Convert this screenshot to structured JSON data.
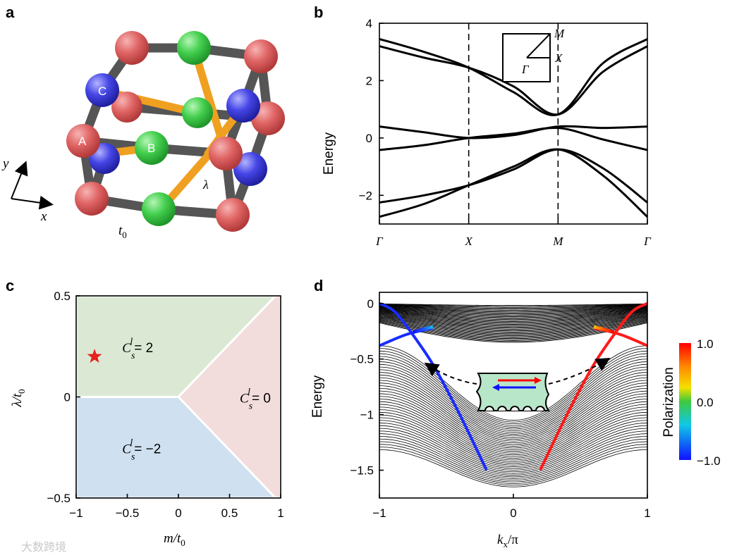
{
  "panels": {
    "a": "a",
    "b": "b",
    "c": "c",
    "d": "d"
  },
  "panel_a": {
    "site_labels": [
      "A",
      "B",
      "C"
    ],
    "hopping_t0": "t",
    "hopping_t0_sub": "0",
    "hopping_lambda": "λ",
    "axis_x": "x",
    "axis_y": "y",
    "colors": {
      "A": "#e05a5a",
      "B": "#3fcf52",
      "C": "#3a3ae0",
      "bond": "#555555",
      "lambda_bond": "#f0a020"
    }
  },
  "watermark": "大数跨境",
  "chart_data": [
    {
      "panel": "b",
      "type": "line",
      "xlabel": "",
      "ylabel": "Energy",
      "ylim": [
        -3,
        4
      ],
      "yticks": [
        -2,
        0,
        2,
        4
      ],
      "x_ticks": [
        "Γ",
        "X",
        "M",
        "Γ"
      ],
      "x_tick_positions": [
        0,
        1,
        2,
        3
      ],
      "vlines_at": [
        1,
        2
      ],
      "inset_labels": {
        "M": "M",
        "X": "X",
        "G": "Γ"
      },
      "series": [
        {
          "x": [
            0,
            0.5,
            1,
            1.5,
            2,
            2.5,
            3
          ],
          "values": [
            -2.75,
            -2.3,
            -1.65,
            -1.0,
            -0.4,
            -1.3,
            -2.75
          ]
        },
        {
          "x": [
            0,
            0.5,
            1,
            1.5,
            2,
            2.5,
            3
          ],
          "values": [
            -2.25,
            -2.0,
            -1.65,
            -1.1,
            -0.4,
            -1.05,
            -2.25
          ]
        },
        {
          "x": [
            0,
            0.5,
            1,
            1.5,
            2,
            2.5,
            3
          ],
          "values": [
            -0.42,
            -0.25,
            0.0,
            0.15,
            0.35,
            -0.05,
            -0.42
          ]
        },
        {
          "x": [
            0,
            0.5,
            1,
            1.5,
            2,
            2.5,
            3
          ],
          "values": [
            0.4,
            0.2,
            0.0,
            0.1,
            0.4,
            0.35,
            0.4
          ]
        },
        {
          "x": [
            0,
            0.5,
            1,
            1.5,
            2,
            2.5,
            3
          ],
          "values": [
            3.2,
            2.8,
            2.45,
            1.8,
            0.82,
            2.3,
            3.2
          ]
        },
        {
          "x": [
            0,
            0.5,
            1,
            1.5,
            2,
            2.5,
            3
          ],
          "values": [
            3.45,
            3.0,
            2.45,
            1.6,
            0.82,
            2.6,
            3.45
          ]
        }
      ]
    },
    {
      "panel": "c",
      "type": "area",
      "xlabel": "m/t",
      "xlabel_sub": "0",
      "ylabel": "λ/t",
      "ylabel_sub": "0",
      "xlim": [
        -1,
        1
      ],
      "ylim": [
        -0.5,
        0.5
      ],
      "xticks": [
        -1,
        -0.5,
        0,
        0.5,
        1
      ],
      "xtick_labels": [
        "−1",
        "−0.5",
        "0",
        "0.5",
        "1"
      ],
      "yticks": [
        -0.5,
        0,
        0.5
      ],
      "ytick_labels": [
        "−0.5",
        "0",
        "0.5"
      ],
      "regions": [
        {
          "value_label": "= 2",
          "color": "#dbe9d4",
          "polygon": [
            [
              -1,
              0
            ],
            [
              0,
              0
            ],
            [
              0.95,
              0.5
            ],
            [
              -1,
              0.5
            ]
          ],
          "label_at": [
            -0.55,
            0.25
          ]
        },
        {
          "value_label": "= 0",
          "color": "#f2dcdc",
          "polygon": [
            [
              0,
              0
            ],
            [
              0.95,
              0.5
            ],
            [
              1,
              0.5
            ],
            [
              1,
              -0.5
            ],
            [
              0.95,
              -0.5
            ]
          ],
          "label_at": [
            0.6,
            0.0
          ]
        },
        {
          "value_label": "= −2",
          "color": "#cfe0f0",
          "polygon": [
            [
              -1,
              0
            ],
            [
              0,
              0
            ],
            [
              0.95,
              -0.5
            ],
            [
              -1,
              -0.5
            ]
          ],
          "label_at": [
            -0.55,
            -0.25
          ]
        }
      ],
      "marker": {
        "x": -0.82,
        "y": 0.2,
        "color": "#e8201e"
      },
      "boundary_color": "#ffffff"
    },
    {
      "panel": "d",
      "type": "line",
      "xlabel": "k",
      "xlabel_sub": "x",
      "xlabel_suffix": "/π",
      "ylabel": "Energy",
      "xlim": [
        -1,
        1
      ],
      "ylim": [
        -1.75,
        0.1
      ],
      "xticks": [
        -1,
        0,
        1
      ],
      "xtick_labels": [
        "−1",
        "0",
        "1"
      ],
      "yticks": [
        0,
        -0.5,
        -1,
        -1.5
      ],
      "ytick_labels": [
        "0",
        "−0.5",
        "−1",
        "−1.5"
      ],
      "colorbar": {
        "label": "Polarization",
        "min": -1.0,
        "max": 1.0,
        "tick_labels": [
          "1.0",
          "0.0",
          "−1.0"
        ],
        "colors": [
          "#ff0000",
          "#ff8800",
          "#f5e000",
          "#3ec93e",
          "#10c8e8",
          "#1010ff"
        ]
      },
      "bulk_upper": {
        "edge": 0.0,
        "center_min": -0.35,
        "band_count": 40
      },
      "bulk_lower": {
        "top_edge": -0.38,
        "center": -1.65,
        "band_count": 40
      },
      "edge_states": [
        {
          "color": "blue",
          "x": [
            -1,
            -0.9,
            -0.8,
            -0.6,
            -0.4,
            -0.2
          ],
          "values": [
            0.0,
            -0.06,
            -0.2,
            -0.55,
            -1.0,
            -1.5
          ]
        },
        {
          "color": "blue",
          "x": [
            -1,
            -0.8,
            -0.6
          ],
          "values": [
            -0.38,
            -0.28,
            -0.22
          ]
        },
        {
          "color": "red",
          "x": [
            0.2,
            0.4,
            0.6,
            0.8,
            0.9,
            1
          ],
          "values": [
            -1.5,
            -1.0,
            -0.55,
            -0.2,
            -0.06,
            0.0
          ]
        },
        {
          "color": "red",
          "x": [
            0.6,
            0.8,
            1
          ],
          "values": [
            -0.22,
            -0.28,
            -0.38
          ]
        }
      ]
    }
  ]
}
